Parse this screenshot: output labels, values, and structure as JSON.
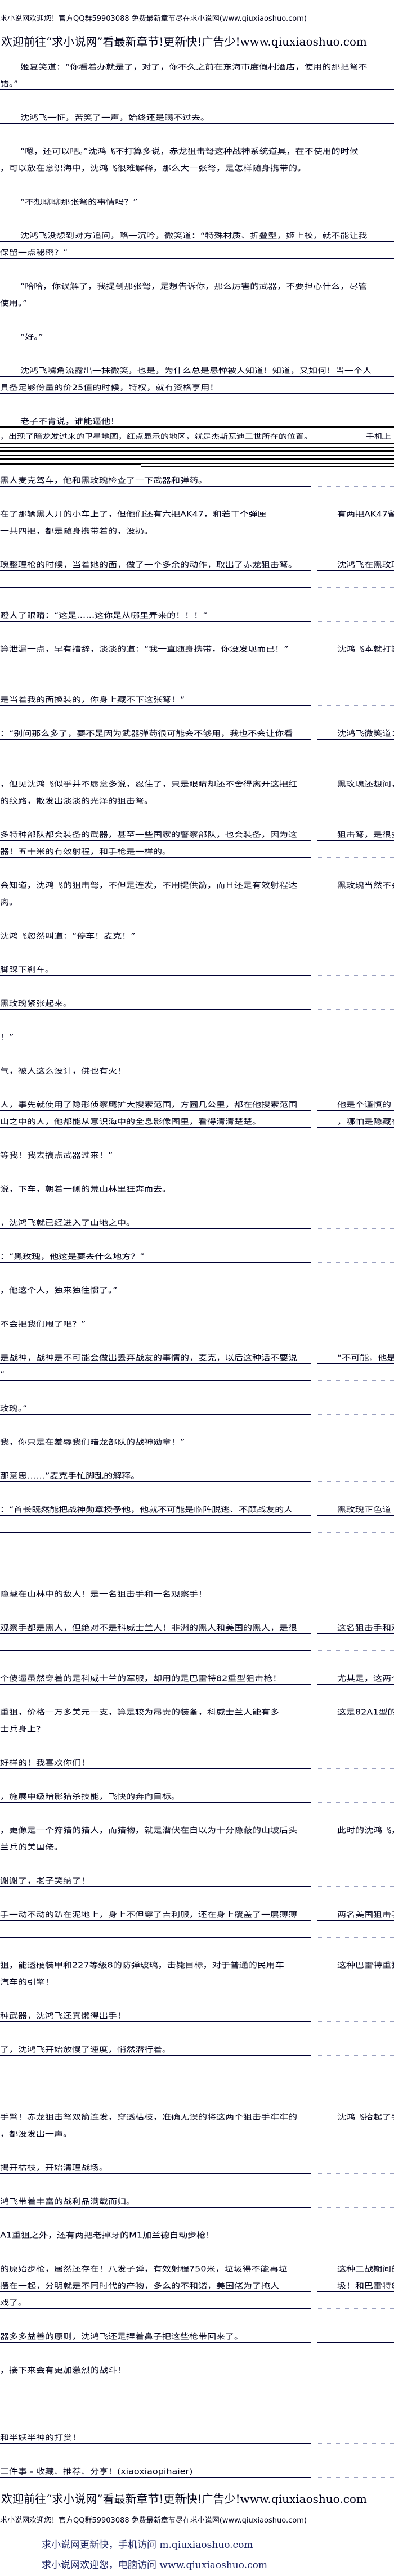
{
  "header": {
    "welcome": "求小说网欢迎您！官方QQ群59903088 免费最新章节尽在求小说网(www.qiuxiaoshuo.com)",
    "promo": "欢迎前往“求小说网”看最新章节!更新快!广告少!www.qiuxiaoshuo.com"
  },
  "top_paragraphs": [
    {
      "lines": [
        "姬复笑道：“你看着办就是了，对了，你不久之前在东海市度假村酒店，使用的那把弩不",
        "错。”"
      ]
    },
    {
      "lines": [
        "沈鸿飞一怔，苦笑了一声，始终还是瞒不过去。"
      ]
    },
    {
      "lines": [
        "“嗯，还可以吧。”沈鸿飞不打算多说，赤龙狙击弩这种战神系统道具，在不使用的时候",
        "，可以放在意识海中，沈鸿飞很难解释，那么大一张弩，是怎样随身携带的。"
      ]
    },
    {
      "lines": [
        "“不想聊聊那张弩的事情吗？”"
      ]
    },
    {
      "lines": [
        "沈鸿飞没想到对方追问，略一沉吟，微笑道：“特殊材质、折叠型，姬上校，就不能让我",
        "保留一点秘密？”"
      ]
    },
    {
      "lines": [
        "“哈哈，你误解了，我提到那张弩，是想告诉你，那么厉害的武器，不要担心什么，尽管",
        "使用。”"
      ]
    },
    {
      "lines": [
        "“好。”"
      ]
    },
    {
      "lines": [
        "沈鸿飞嘴角流露出一抹微笑，也是，为什么总是忌惮被人知道！知道，又如何！当一个人",
        "具备足够份量的价25值的时候，特权，就有资格享用！"
      ]
    },
    {
      "lines": [
        "老子不肯说，谁能逼他！"
      ]
    }
  ],
  "band": {
    "left": "，出现了暗龙发过来的卫星地图，红点显示的地区，就是杰斯瓦迪三世所在的位置。",
    "right": "手机上"
  },
  "lower_paragraphs": [
    {
      "lines": [
        {
          "left": "黑人麦克驾车，他和黑玫瑰检查了一下武器和弹药。",
          "right": ""
        }
      ]
    },
    {
      "lines": [
        {
          "left": "在了那辆黑人开的小车上了，但他们还有六把AK47，和若干个弹匣",
          "right": "有两把AK47留在"
        },
        {
          "left": "一共四把，都是随身携带着的，没扔。",
          "right": ""
        }
      ]
    },
    {
      "lines": [
        {
          "left": "瑰整理枪的时候，当着她的面，做了一个多余的动作，取出了赤龙狙击弩。",
          "right": "沈鸿飞在黑玫瑰"
        },
        {
          "left": "",
          "right": ""
        }
      ]
    },
    {
      "lines": [
        {
          "left": "瞪大了眼睛：“这是……这你是从哪里弄来的！！！”",
          "right": ""
        }
      ]
    },
    {
      "lines": [
        {
          "left": "算泄漏一点，早有措辞，淡淡的道：“我一直随身携带，你没发现而已！”",
          "right": "沈鸿飞本就打算"
        },
        {
          "left": "",
          "right": ""
        }
      ]
    },
    {
      "lines": [
        {
          "left": "是当着我的面换装的，你身上藏不下这张弩！”",
          "right": ""
        }
      ]
    },
    {
      "lines": [
        {
          "left": "：“别问那么多了，要不是因为武器弹药很可能会不够用，我也不会让你看",
          "right": "沈鸿飞微笑道："
        },
        {
          "left": "",
          "right": ""
        }
      ]
    },
    {
      "lines": [
        {
          "left": "，但见沈鸿飞似乎并不愿意多说，忍住了，只是眼睛却还不舍得离开这把红",
          "right": "黑玫瑰还想问，"
        },
        {
          "left": "的纹路，散发出淡淡的光泽的狙击弩。",
          "right": ""
        }
      ]
    },
    {
      "lines": [
        {
          "left": "多特种部队都会装备的武器，甚至一些国家的警察部队，也会装备，因为这",
          "right": "狙击弩，是很多"
        },
        {
          "left": "器！五十米的有效射程，和手枪是一样的。",
          "right": ""
        }
      ]
    },
    {
      "lines": [
        {
          "left": "会知道，沈鸿飞的狙击弩，不但是连发，不用提供箭，而且还是有效射程达",
          "right": "黑玫瑰当然不会"
        },
        {
          "left": "离。",
          "right": ""
        }
      ]
    },
    {
      "lines": [
        {
          "left": "沈鸿飞忽然叫道：“停车！麦克！”",
          "right": ""
        }
      ]
    },
    {
      "lines": [
        {
          "left": "脚踩下刹车。",
          "right": ""
        }
      ]
    },
    {
      "lines": [
        {
          "left": "黑玫瑰紧张起来。",
          "right": ""
        }
      ]
    },
    {
      "lines": [
        {
          "left": "！”",
          "right": ""
        }
      ]
    },
    {
      "lines": [
        {
          "left": "气，被人这么设计，佛也有火！",
          "right": ""
        }
      ]
    },
    {
      "lines": [
        {
          "left": "人，事先就使用了隐形侦察鹰扩大搜索范围，方圆几公里，都在他搜索范围",
          "right": "他是个谨慎的"
        },
        {
          "left": "山之中的人，他都能从意识海中的全息影像图里，看得清清楚楚。",
          "right": "，哪怕是隐藏在荒"
        }
      ]
    },
    {
      "lines": [
        {
          "left": "等我！我去搞点武器过来！”",
          "right": ""
        }
      ]
    },
    {
      "lines": [
        {
          "left": "说，下车，朝着一侧的荒山林里狂奔而去。",
          "right": ""
        }
      ]
    },
    {
      "lines": [
        {
          "left": "，沈鸿飞就已经进入了山地之中。",
          "right": ""
        }
      ]
    },
    {
      "lines": [
        {
          "left": "：“黑玫瑰，他这是要去什么地方？”",
          "right": ""
        }
      ]
    },
    {
      "lines": [
        {
          "left": "，他这个人，独来独往惯了。”",
          "right": ""
        }
      ]
    },
    {
      "lines": [
        {
          "left": "不会把我们甩了吧？”",
          "right": ""
        }
      ]
    },
    {
      "lines": [
        {
          "left": "是战神，战神是不可能会做出丢弃战友的事情的，麦克，以后这种话不要说",
          "right": "“不可能，他是"
        },
        {
          "left": "”",
          "right": ""
        }
      ]
    },
    {
      "lines": [
        {
          "left": "玫瑰。”",
          "right": ""
        }
      ]
    },
    {
      "lines": [
        {
          "left": "我，你只是在羞辱我们暗龙部队的战神勋章！”",
          "right": ""
        }
      ]
    },
    {
      "lines": [
        {
          "left": "那意思……”麦克手忙脚乱的解释。",
          "right": ""
        }
      ]
    },
    {
      "lines": [
        {
          "left": "：“首长既然能把战神勋章授予他，他就不可能是临阵脱逃、不顾战友的人",
          "right": "黑玫瑰正色道"
        },
        {
          "left": "",
          "right": ""
        }
      ]
    },
    {
      "lines": [
        {
          "left": "",
          "right": ""
        }
      ]
    },
    {
      "lines": [
        {
          "left": "隐藏在山林中的敌人！是一名狙击手和一名观察手！",
          "right": ""
        }
      ]
    },
    {
      "lines": [
        {
          "left": "观察手都是黑人，但绝对不是科威士兰人！非洲的黑人和美国的黑人，是很",
          "right": "这名狙击手和观"
        },
        {
          "left": "",
          "right": ""
        }
      ]
    },
    {
      "lines": [
        {
          "left": "个傻逼虽然穿着的是科威士兰的军服，却用的是巴雷特82重型狙击枪！",
          "right": "尤其是，这两个"
        }
      ]
    },
    {
      "lines": [
        {
          "left": "重狙，价格一万多美元一支，算是较为昂贵的装备，科威士兰人能有多",
          "right": "这是82A1型的"
        },
        {
          "left": "士兵身上？",
          "right": ""
        }
      ]
    },
    {
      "lines": [
        {
          "left": "好样的！我喜欢你们！",
          "right": ""
        }
      ]
    },
    {
      "lines": [
        {
          "left": "，施展中级暗影猎杀技能，飞快的奔向目标。",
          "right": ""
        }
      ]
    },
    {
      "lines": [
        {
          "left": "，更像是一个狩猎的猎人，而猎物，就是潜伏在自以为十分隐蔽的山坡后头",
          "right": "此时的沈鸿飞，"
        },
        {
          "left": "兰兵的美国佬。",
          "right": ""
        }
      ]
    },
    {
      "lines": [
        {
          "left": "谢谢了，老子笑纳了！",
          "right": ""
        }
      ]
    },
    {
      "lines": [
        {
          "left": "手一动不动的趴在泥地上，身上不但穿了吉利服，还在身上覆盖了一层薄薄",
          "right": "两名美国狙击手"
        },
        {
          "left": "",
          "right": ""
        }
      ]
    },
    {
      "lines": [
        {
          "left": "狙，能透硬装甲和227等级8的防弹玻璃，击毙目标，对于普通的民用车",
          "right": "这种巴雷特重狙"
        },
        {
          "left": "汽车的引擎！",
          "right": ""
        }
      ]
    },
    {
      "lines": [
        {
          "left": "种武器，沈鸿飞还真懒得出手！",
          "right": ""
        }
      ]
    },
    {
      "lines": [
        {
          "left": "了，沈鸿飞开始放慢了速度，悄然潜行着。",
          "right": ""
        }
      ]
    },
    {
      "lines": [
        {
          "left": "",
          "right": ""
        }
      ]
    },
    {
      "lines": [
        {
          "left": "手臂！赤龙狙击弩双箭连发，穿透枯枝，准确无误的将这两个狙击手牢牢的",
          "right": "沈鸿飞抬起了手"
        },
        {
          "left": "，都没发出一声。",
          "right": ""
        }
      ]
    },
    {
      "lines": [
        {
          "left": "揭开枯枝，开始清理战场。",
          "right": ""
        }
      ]
    },
    {
      "lines": [
        {
          "left": "鸿飞带着丰富的战利品满载而归。",
          "right": ""
        }
      ]
    },
    {
      "lines": [
        {
          "left": "A1重狙之外，还有两把老掉牙的M1加兰德自动步枪！",
          "right": ""
        }
      ]
    },
    {
      "lines": [
        {
          "left": "的原始步枪，居然还存在！八发子弹，有效射程750米，垃圾得不能再垃",
          "right": "这种二战期间的"
        },
        {
          "left": "摆在一起，分明就是不同时代的产物，多么的不和谐，美国佬为了掩人",
          "right": "圾！和巴雷特82A1"
        },
        {
          "left": "戏了。",
          "right": ""
        }
      ]
    },
    {
      "lines": [
        {
          "left": "器多多益善的原则，沈鸿飞还是捏着鼻子把这些枪带回来了。",
          "right": " "
        }
      ]
    },
    {
      "lines": [
        {
          "left": "，接下来会有更加激烈的战斗！",
          "right": ""
        }
      ]
    },
    {
      "lines": [
        {
          "left": "",
          "right": ""
        }
      ]
    },
    {
      "lines": [
        {
          "left": "和半妖半神的打赏！",
          "right": ""
        }
      ]
    },
    {
      "lines": [
        {
          "left": "三件事 - 收藏、推荐、分享！(xiaoxiaopihaier)",
          "right": ""
        }
      ]
    }
  ],
  "footer": {
    "promo": "欢迎前往“求小说网”看最新章节!更新快!广告少!www.qiuxiaoshuo.com",
    "welcome": "求小说网欢迎您！官方QQ群59903088 免费最新章节尽在求小说网(www.qiuxiaoshuo.com)",
    "mobile": "求小说网更新快，手机访问 m.qiuxiaoshuo.com",
    "pc": "求小说网欢迎您，电脑访问 www.qiuxiaoshuo.com"
  },
  "colors": {
    "text": "#00001a",
    "rule": "#000033",
    "footer_link": "#1a2260"
  }
}
